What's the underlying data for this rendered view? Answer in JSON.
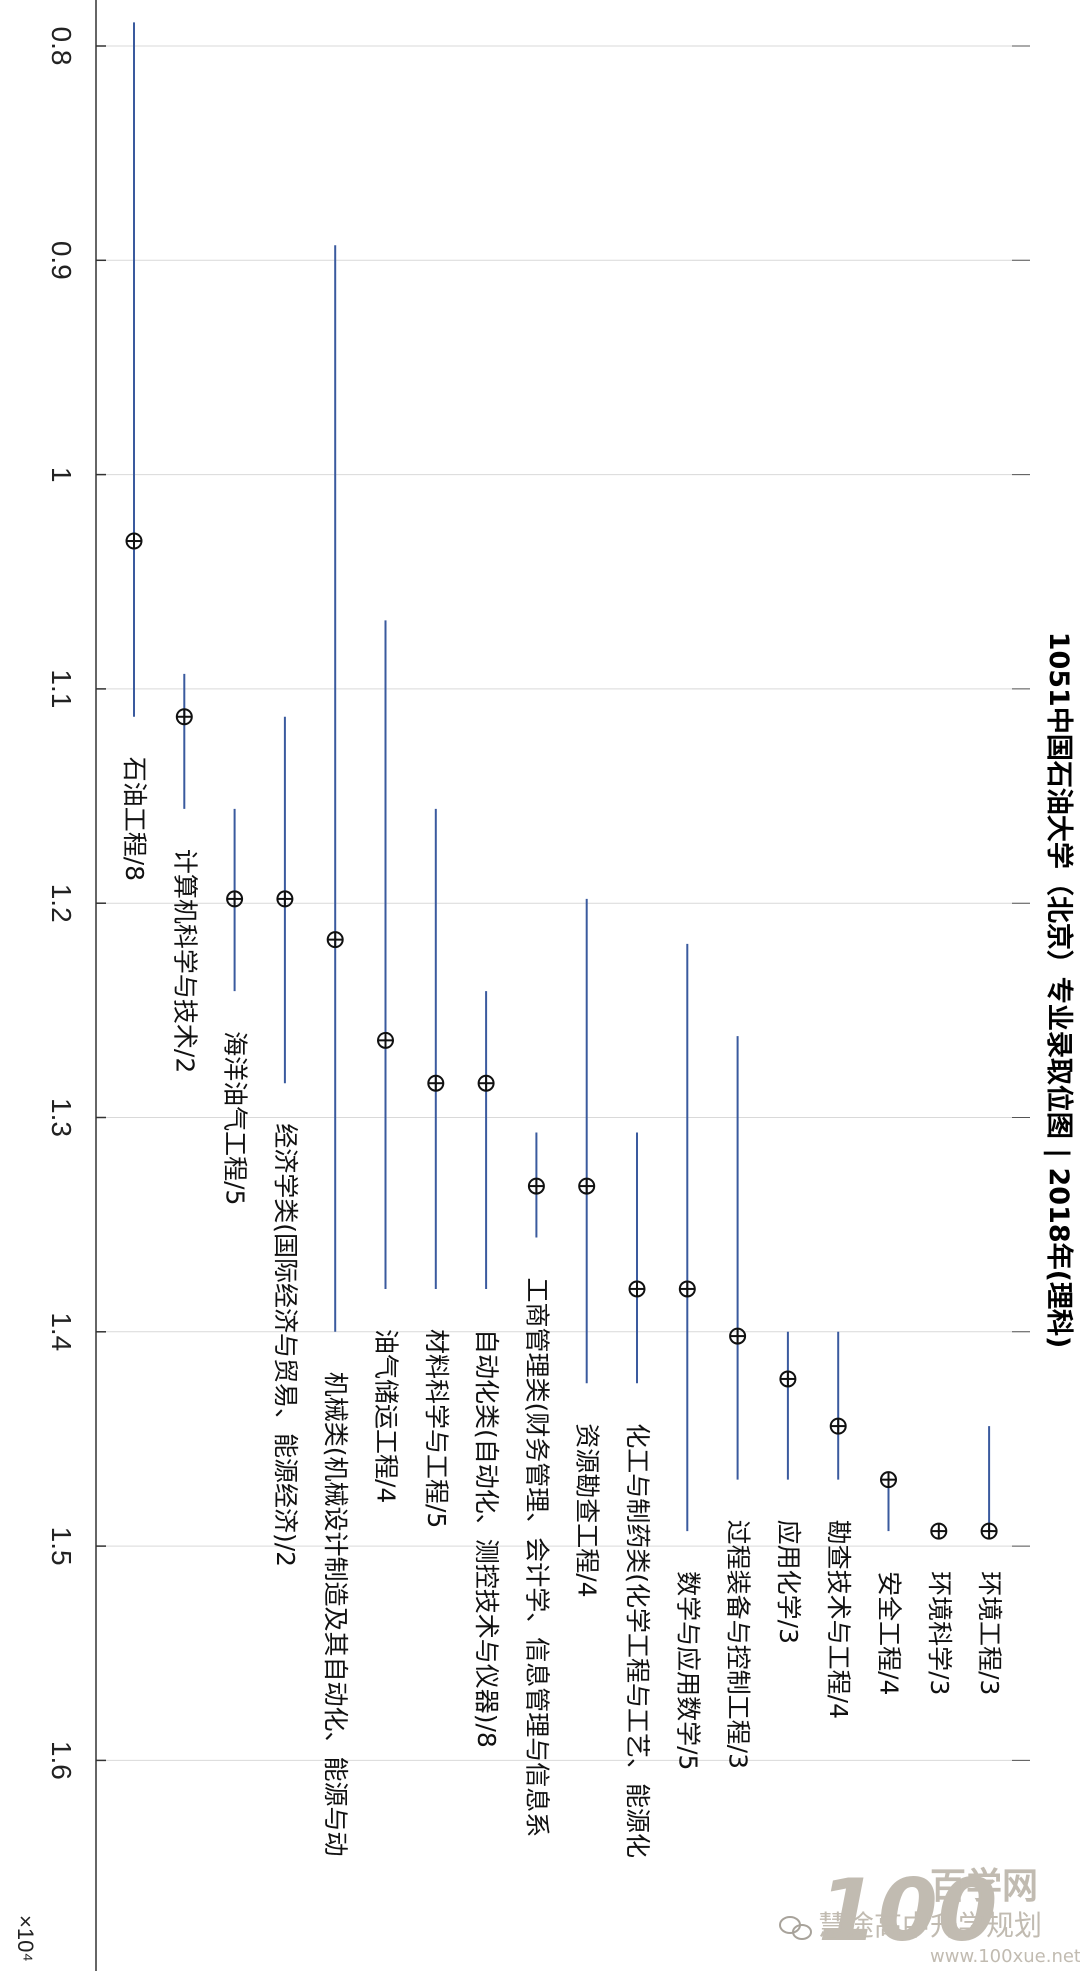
{
  "chart_data": {
    "type": "range",
    "title": "1051中国石油大学（北京）专业录取位图 | 2018年(理科)",
    "value_axis_exponent_label": "×10⁴",
    "value_axis": {
      "range": [
        0.78,
        1.7
      ],
      "ticks": [
        0.8,
        0.9,
        1,
        1.1,
        1.2,
        1.3,
        1.4,
        1.5,
        1.6
      ],
      "tick_labels": [
        "0.8",
        "0.9",
        "1",
        "1.1",
        "1.2",
        "1.3",
        "1.4",
        "1.5",
        "1.6"
      ],
      "grid": true
    },
    "categories": [
      "石油工程/8",
      "计算机科学与技术/2",
      "海洋油气工程/5",
      "经济学类(国际经济与贸易、能源经济)/2",
      "机械类(机械设计制造及其自动化、能源与动",
      "油气储运工程/4",
      "材料科学与工程/5",
      "自动化类(自动化、测控技术与仪器)/8",
      "工商管理类(财务管理、会计学、信息管理与信息系",
      "资源勘查工程/4",
      "化工与制药类(化学工程与工艺、能源化",
      "数学与应用数学/5",
      "过程装备与控制工程/3",
      "应用化学/3",
      "勘查技术与工程/4",
      "安全工程/4",
      "环境科学/3",
      "环境工程/3"
    ],
    "series": [
      {
        "mid": [
          1.031,
          1.113,
          1.198,
          1.198,
          1.217,
          1.264,
          1.284,
          1.284,
          1.332,
          1.332,
          1.38,
          1.38,
          1.402,
          1.422,
          1.444,
          1.469,
          1.493,
          1.493
        ],
        "low": [
          0.789,
          1.093,
          1.156,
          1.113,
          0.893,
          1.068,
          1.156,
          1.241,
          1.307,
          1.198,
          1.307,
          1.219,
          1.262,
          1.4,
          1.4,
          1.466,
          1.493,
          1.444
        ],
        "high": [
          1.113,
          1.156,
          1.241,
          1.284,
          1.4,
          1.38,
          1.38,
          1.38,
          1.356,
          1.424,
          1.424,
          1.493,
          1.469,
          1.469,
          1.469,
          1.493,
          1.493,
          1.493
        ],
        "line_color": "#3a5a9e",
        "marker": "circle-plus"
      }
    ]
  },
  "watermark": {
    "logo_number": "100",
    "logo_text": "百学网",
    "wechat_text": "慧途高中升学规划",
    "url": "www.100xue.net"
  }
}
